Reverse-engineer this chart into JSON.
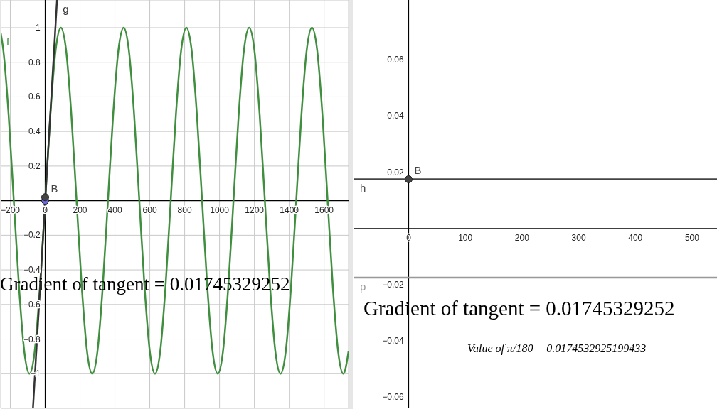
{
  "chart_data": [
    {
      "type": "line",
      "xlim": [
        -255,
        1740
      ],
      "ylim": [
        -1.2,
        1.16
      ],
      "xticks": [
        {
          "value": -200,
          "label": "−200"
        },
        0,
        200,
        400,
        600,
        800,
        1000,
        1200,
        1400,
        1600
      ],
      "yticks": [
        {
          "value": -1,
          "label": "−1"
        },
        {
          "value": -0.8,
          "label": "−0.8"
        },
        {
          "value": -0.6,
          "label": "−0.6"
        },
        {
          "value": -0.4,
          "label": "−0.4"
        },
        {
          "value": -0.2,
          "label": "−0.2"
        },
        0.2,
        0.4,
        0.6,
        0.8,
        1
      ],
      "grid": true,
      "annotations": [
        "Gradient of tangent = 0.01745329252"
      ],
      "series": [
        {
          "name": "f",
          "color": "#3f8f3f",
          "x": [
            -255,
            -240,
            -210,
            -180,
            -150,
            -120,
            -90,
            -60,
            -30,
            0,
            30,
            60,
            90,
            120,
            150,
            180,
            210,
            240,
            270,
            300,
            330,
            360,
            390,
            420,
            450,
            480,
            510,
            540,
            570,
            600,
            630,
            660,
            690,
            720,
            750,
            780,
            810,
            840,
            870,
            900,
            930,
            960,
            990,
            1020,
            1050,
            1080,
            1110,
            1140,
            1170,
            1200,
            1230,
            1260,
            1290,
            1320,
            1350,
            1380,
            1410,
            1440,
            1470,
            1500,
            1530,
            1560,
            1590,
            1620,
            1650,
            1680,
            1710,
            1740
          ],
          "values": [
            0.97,
            0.87,
            0.5,
            0,
            -0.5,
            -0.87,
            -1,
            -0.87,
            -0.5,
            0,
            0.5,
            0.87,
            1,
            0.87,
            0.5,
            0,
            -0.5,
            -0.87,
            -1,
            -0.87,
            -0.5,
            0,
            0.5,
            0.87,
            1,
            0.87,
            0.5,
            0,
            -0.5,
            -0.87,
            -1,
            -0.87,
            -0.5,
            0,
            0.5,
            0.87,
            1,
            0.87,
            0.5,
            0,
            -0.5,
            -0.87,
            -1,
            -0.87,
            -0.5,
            0,
            0.5,
            0.87,
            1,
            0.87,
            0.5,
            0,
            -0.5,
            -0.87,
            -1,
            -0.87,
            -0.5,
            0,
            0.5,
            0.87,
            1,
            0.87,
            0.5,
            0,
            -0.5,
            -0.87,
            -1,
            -0.87
          ]
        },
        {
          "name": "g",
          "color": "#333333",
          "x": [
            68,
            -70
          ],
          "values": [
            1.16,
            -1.2
          ]
        },
        {
          "type": "scatter",
          "color": "#6a6ae0",
          "marker": "circle",
          "x": [
            0
          ],
          "values": [
            0
          ]
        },
        {
          "type": "scatter",
          "name": "B",
          "color": "#444444",
          "marker": "circle",
          "x": [
            0
          ],
          "values": [
            0.02
          ]
        }
      ]
    },
    {
      "type": "line",
      "xlim": [
        -96,
        544
      ],
      "ylim": [
        -0.064,
        0.0813
      ],
      "xticks": [
        0,
        100,
        200,
        300,
        400,
        500
      ],
      "yticks": [
        {
          "value": -0.06,
          "label": "−0.06"
        },
        {
          "value": -0.04,
          "label": "−0.04"
        },
        {
          "value": -0.02,
          "label": "−0.02"
        },
        0.02,
        0.04,
        0.06
      ],
      "annotations": [
        "Gradient of tangent = 0.01745329252",
        "Value of π/180 = 0.0174532925199433"
      ],
      "series": [
        {
          "name": "h",
          "color": "#444444",
          "x": [
            -96,
            544
          ],
          "values": [
            0.0175,
            0.0175
          ]
        },
        {
          "name": "p",
          "color": "#999999",
          "x": [
            -96,
            544
          ],
          "values": [
            -0.0175,
            -0.0175
          ]
        },
        {
          "type": "scatter",
          "name": "B",
          "color": "#444444",
          "marker": "circle",
          "x": [
            0
          ],
          "values": [
            0.0175
          ]
        }
      ]
    }
  ]
}
